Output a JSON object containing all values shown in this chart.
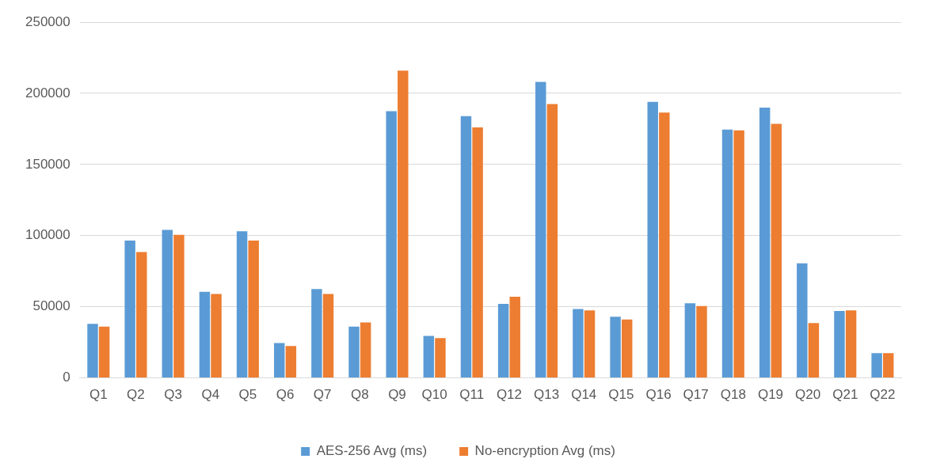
{
  "chart_data": {
    "type": "bar",
    "categories": [
      "Q1",
      "Q2",
      "Q3",
      "Q4",
      "Q5",
      "Q6",
      "Q7",
      "Q8",
      "Q9",
      "Q10",
      "Q11",
      "Q12",
      "Q13",
      "Q14",
      "Q15",
      "Q16",
      "Q17",
      "Q18",
      "Q19",
      "Q20",
      "Q21",
      "Q22"
    ],
    "series": [
      {
        "name": "AES-256 Avg (ms)",
        "color": "#5b9bd5",
        "values": [
          38000,
          96500,
          104000,
          60500,
          103000,
          24500,
          62500,
          36000,
          187500,
          29500,
          184000,
          52000,
          208000,
          48500,
          43000,
          194000,
          52500,
          174500,
          190000,
          80500,
          47000,
          17500
        ]
      },
      {
        "name": "No-encryption Avg (ms)",
        "color": "#ed7d31",
        "values": [
          36000,
          88500,
          100500,
          59000,
          96500,
          22500,
          59000,
          39000,
          216000,
          28000,
          176000,
          57000,
          192500,
          47500,
          41000,
          186500,
          50500,
          174000,
          178500,
          38500,
          47500,
          17500
        ]
      }
    ],
    "ylim": [
      0,
      250000
    ],
    "yticks": [
      0,
      50000,
      100000,
      150000,
      200000,
      250000
    ],
    "grid": "y",
    "legend": "bottom"
  }
}
